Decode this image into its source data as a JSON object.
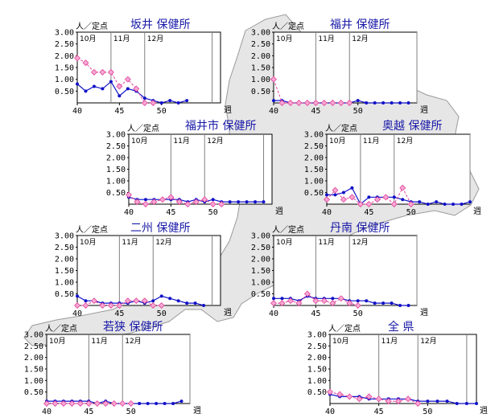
{
  "map": {
    "fill": "#e6e6e6",
    "stroke": "#9a9a9a"
  },
  "colors": {
    "current": "#1010c8",
    "previous": "#e0409a",
    "previous_fill": "#f6a8d2"
  },
  "chart_data": [
    {
      "type": "line",
      "title": "坂井 保健所",
      "ylabel": "人／定点",
      "xlabel": "週",
      "ylim": [
        0,
        3
      ],
      "yticks": [
        "3.00",
        "2.50",
        "2.00",
        "1.50",
        "1.00",
        "0.50"
      ],
      "xlim": [
        40,
        57
      ],
      "xticks": [
        "40",
        "45",
        "50"
      ],
      "months": [
        "10月",
        "11月",
        "12月"
      ],
      "month_weeks": [
        40,
        44,
        48,
        56
      ],
      "series": [
        {
          "role": "current",
          "x": [
            40,
            41,
            42,
            43,
            44,
            45,
            46,
            47,
            48,
            49,
            50,
            51,
            52,
            53
          ],
          "values": [
            0.8,
            0.5,
            0.7,
            0.6,
            0.9,
            0.3,
            0.6,
            0.5,
            0.2,
            0.1,
            0.0,
            0.1,
            0.0,
            0.1
          ]
        },
        {
          "role": "previous",
          "x": [
            40,
            41,
            42,
            43,
            44,
            45,
            46,
            47,
            48,
            49
          ],
          "values": [
            1.9,
            1.7,
            1.3,
            1.3,
            1.3,
            0.7,
            1.0,
            0.6,
            0.0,
            0.0
          ]
        }
      ]
    },
    {
      "type": "line",
      "title": "福井 保健所",
      "ylabel": "人／定点",
      "xlabel": "週",
      "ylim": [
        0,
        3
      ],
      "yticks": [
        "3.00",
        "2.50",
        "2.00",
        "1.50",
        "1.00",
        "0.50"
      ],
      "xlim": [
        40,
        57
      ],
      "xticks": [
        "40",
        "45",
        "50"
      ],
      "months": [
        "10月",
        "11月",
        "12月"
      ],
      "month_weeks": [
        40,
        45,
        49,
        57
      ],
      "series": [
        {
          "role": "current",
          "x": [
            40,
            41,
            42,
            43,
            44,
            45,
            46,
            47,
            48,
            49,
            50,
            51,
            52,
            53,
            54,
            55,
            56
          ],
          "values": [
            0.1,
            0.1,
            0.0,
            0.0,
            0.0,
            0.0,
            0.0,
            0.0,
            0.0,
            0.0,
            0.1,
            0.0,
            0.0,
            0.0,
            0.0,
            0.0,
            0.0
          ]
        },
        {
          "role": "previous",
          "x": [
            40,
            41,
            42,
            43,
            44,
            45,
            46,
            47,
            48,
            49
          ],
          "values": [
            1.0,
            0.0,
            0.0,
            0.0,
            0.0,
            0.0,
            0.0,
            0.0,
            0.0,
            0.0
          ]
        }
      ]
    },
    {
      "type": "line",
      "title": "福井市 保健所",
      "ylabel": "人／定点",
      "xlabel": "週",
      "ylim": [
        0,
        3
      ],
      "yticks": [
        "3.00",
        "2.50",
        "2.00",
        "1.50",
        "1.00",
        "0.50"
      ],
      "xlim": [
        40,
        57
      ],
      "xticks": [
        "40",
        "45",
        "50"
      ],
      "months": [
        "10月",
        "11月",
        "12月"
      ],
      "month_weeks": [
        40,
        45,
        49,
        56
      ],
      "series": [
        {
          "role": "current",
          "x": [
            40,
            41,
            42,
            43,
            44,
            45,
            46,
            47,
            48,
            49,
            50,
            51,
            52,
            53,
            54,
            55,
            56
          ],
          "values": [
            0.3,
            0.2,
            0.2,
            0.2,
            0.2,
            0.2,
            0.2,
            0.1,
            0.2,
            0.1,
            0.2,
            0.1,
            0.1,
            0.1,
            0.1,
            0.1,
            0.1
          ]
        },
        {
          "role": "previous",
          "x": [
            40,
            41,
            42,
            43,
            44,
            45,
            46,
            47,
            48,
            49,
            50,
            51
          ],
          "values": [
            0.4,
            0.1,
            0.0,
            0.1,
            0.2,
            0.3,
            0.1,
            0.0,
            0.1,
            0.2,
            0.0,
            0.0
          ]
        }
      ]
    },
    {
      "type": "line",
      "title": "奥越 保健所",
      "ylabel": "人／定点",
      "xlabel": "週",
      "ylim": [
        0,
        3
      ],
      "yticks": [
        "3.00",
        "2.50",
        "2.00",
        "1.50",
        "1.00",
        "0.50"
      ],
      "xlim": [
        40,
        57
      ],
      "xticks": [
        "40",
        "45",
        "50"
      ],
      "months": [
        "10月",
        "11月",
        "12月"
      ],
      "month_weeks": [
        40,
        44,
        48,
        57
      ],
      "series": [
        {
          "role": "current",
          "x": [
            40,
            41,
            42,
            43,
            44,
            45,
            46,
            47,
            48,
            49,
            50,
            51,
            52,
            53,
            54,
            55,
            56,
            57
          ],
          "values": [
            0.4,
            0.4,
            0.5,
            0.7,
            0.0,
            0.3,
            0.3,
            0.3,
            0.3,
            0.2,
            0.1,
            0.1,
            0.0,
            0.1,
            0.0,
            0.0,
            0.0,
            0.1
          ]
        },
        {
          "role": "previous",
          "x": [
            40,
            41,
            42,
            43,
            44,
            45,
            46,
            47,
            48,
            49,
            50
          ],
          "values": [
            0.2,
            0.6,
            0.2,
            0.3,
            0.0,
            0.0,
            0.2,
            0.3,
            0.0,
            0.7,
            0.0
          ]
        }
      ]
    },
    {
      "type": "line",
      "title": "二州 保健所",
      "ylabel": "人／定点",
      "xlabel": "週",
      "ylim": [
        0,
        3
      ],
      "yticks": [
        "3.00",
        "2.50",
        "2.00",
        "1.50",
        "1.00",
        "0.50"
      ],
      "xlim": [
        40,
        57
      ],
      "xticks": [
        "40",
        "45",
        "50"
      ],
      "months": [
        "10月",
        "11月",
        "12月"
      ],
      "month_weeks": [
        40,
        45,
        49,
        56
      ],
      "series": [
        {
          "role": "current",
          "x": [
            40,
            41,
            42,
            43,
            44,
            45,
            46,
            47,
            48,
            49,
            50,
            51,
            52,
            53,
            54,
            55
          ],
          "values": [
            0.4,
            0.2,
            0.2,
            0.1,
            0.1,
            0.1,
            0.1,
            0.2,
            0.1,
            0.2,
            0.4,
            0.3,
            0.2,
            0.1,
            0.1,
            0.0
          ]
        },
        {
          "role": "previous",
          "x": [
            40,
            41,
            42,
            43,
            44,
            45,
            46,
            47,
            48,
            49,
            50
          ],
          "values": [
            0.0,
            0.0,
            0.2,
            0.0,
            0.0,
            0.0,
            0.2,
            0.2,
            0.2,
            0.0,
            0.0
          ]
        }
      ]
    },
    {
      "type": "line",
      "title": "丹南 保健所",
      "ylabel": "人／定点",
      "xlabel": "週",
      "ylim": [
        0,
        3
      ],
      "yticks": [
        "3.00",
        "2.50",
        "2.00",
        "1.50",
        "1.00",
        "0.50"
      ],
      "xlim": [
        40,
        57
      ],
      "xticks": [
        "40",
        "45",
        "50"
      ],
      "months": [
        "10月",
        "11月",
        "12月"
      ],
      "month_weeks": [
        40,
        45,
        49,
        57
      ],
      "series": [
        {
          "role": "current",
          "x": [
            40,
            41,
            42,
            43,
            44,
            45,
            46,
            47,
            48,
            49,
            50,
            51,
            52,
            53,
            54,
            55,
            56
          ],
          "values": [
            0.3,
            0.3,
            0.3,
            0.2,
            0.4,
            0.3,
            0.3,
            0.3,
            0.3,
            0.2,
            0.2,
            0.2,
            0.1,
            0.1,
            0.1,
            0.0,
            0.0
          ]
        },
        {
          "role": "previous",
          "x": [
            40,
            41,
            42,
            43,
            44,
            45,
            46,
            47,
            48,
            49,
            50
          ],
          "values": [
            0.1,
            0.1,
            0.2,
            0.1,
            0.5,
            0.2,
            0.2,
            0.1,
            0.3,
            0.1,
            0.0
          ]
        }
      ]
    },
    {
      "type": "line",
      "title": "若狭 保健所",
      "ylabel": "人／定点",
      "xlabel": "週",
      "ylim": [
        0,
        3
      ],
      "yticks": [
        "3.00",
        "2.50",
        "2.00",
        "1.50",
        "1.00",
        "0.50"
      ],
      "xlim": [
        40,
        57
      ],
      "xticks": [
        "40",
        "45",
        "50"
      ],
      "months": [
        "10月",
        "11月",
        "12月"
      ],
      "month_weeks": [
        40,
        45,
        49,
        57
      ],
      "series": [
        {
          "role": "current",
          "x": [
            40,
            41,
            42,
            43,
            44,
            45,
            46,
            47,
            48,
            49,
            50,
            51,
            52,
            53,
            54,
            55,
            56
          ],
          "values": [
            0.1,
            0.1,
            0.1,
            0.1,
            0.1,
            0.1,
            0.0,
            0.1,
            0.0,
            0.0,
            0.0,
            0.0,
            0.0,
            0.0,
            0.0,
            0.0,
            0.1
          ]
        },
        {
          "role": "previous",
          "x": [
            40,
            41,
            42,
            43,
            44,
            45,
            46,
            47,
            48,
            49,
            50
          ],
          "values": [
            0.0,
            0.0,
            0.0,
            0.0,
            0.0,
            0.0,
            0.0,
            0.0,
            0.0,
            0.0,
            0.0
          ]
        }
      ]
    },
    {
      "type": "line",
      "title": "全 県",
      "ylabel": "人／定点",
      "xlabel": "週",
      "ylim": [
        0,
        3
      ],
      "yticks": [
        "3.00",
        "2.50",
        "2.00",
        "1.50",
        "1.00",
        "0.50"
      ],
      "xlim": [
        40,
        55
      ],
      "xticks": [
        "40",
        "45",
        "50"
      ],
      "months": [
        "10月",
        "11月",
        "12月"
      ],
      "month_weeks": [
        40,
        45,
        49,
        54
      ],
      "series": [
        {
          "role": "current",
          "x": [
            40,
            41,
            42,
            43,
            44,
            45,
            46,
            47,
            48,
            49,
            50,
            51,
            52,
            53,
            54,
            55
          ],
          "values": [
            0.4,
            0.3,
            0.3,
            0.3,
            0.2,
            0.2,
            0.2,
            0.2,
            0.2,
            0.1,
            0.1,
            0.1,
            0.1,
            0.0,
            0.0,
            0.0
          ]
        },
        {
          "role": "previous",
          "x": [
            40,
            41,
            42,
            43,
            44,
            45,
            46,
            47,
            48,
            49
          ],
          "values": [
            0.5,
            0.4,
            0.3,
            0.2,
            0.3,
            0.2,
            0.1,
            0.1,
            0.2,
            0.0
          ]
        }
      ]
    }
  ]
}
